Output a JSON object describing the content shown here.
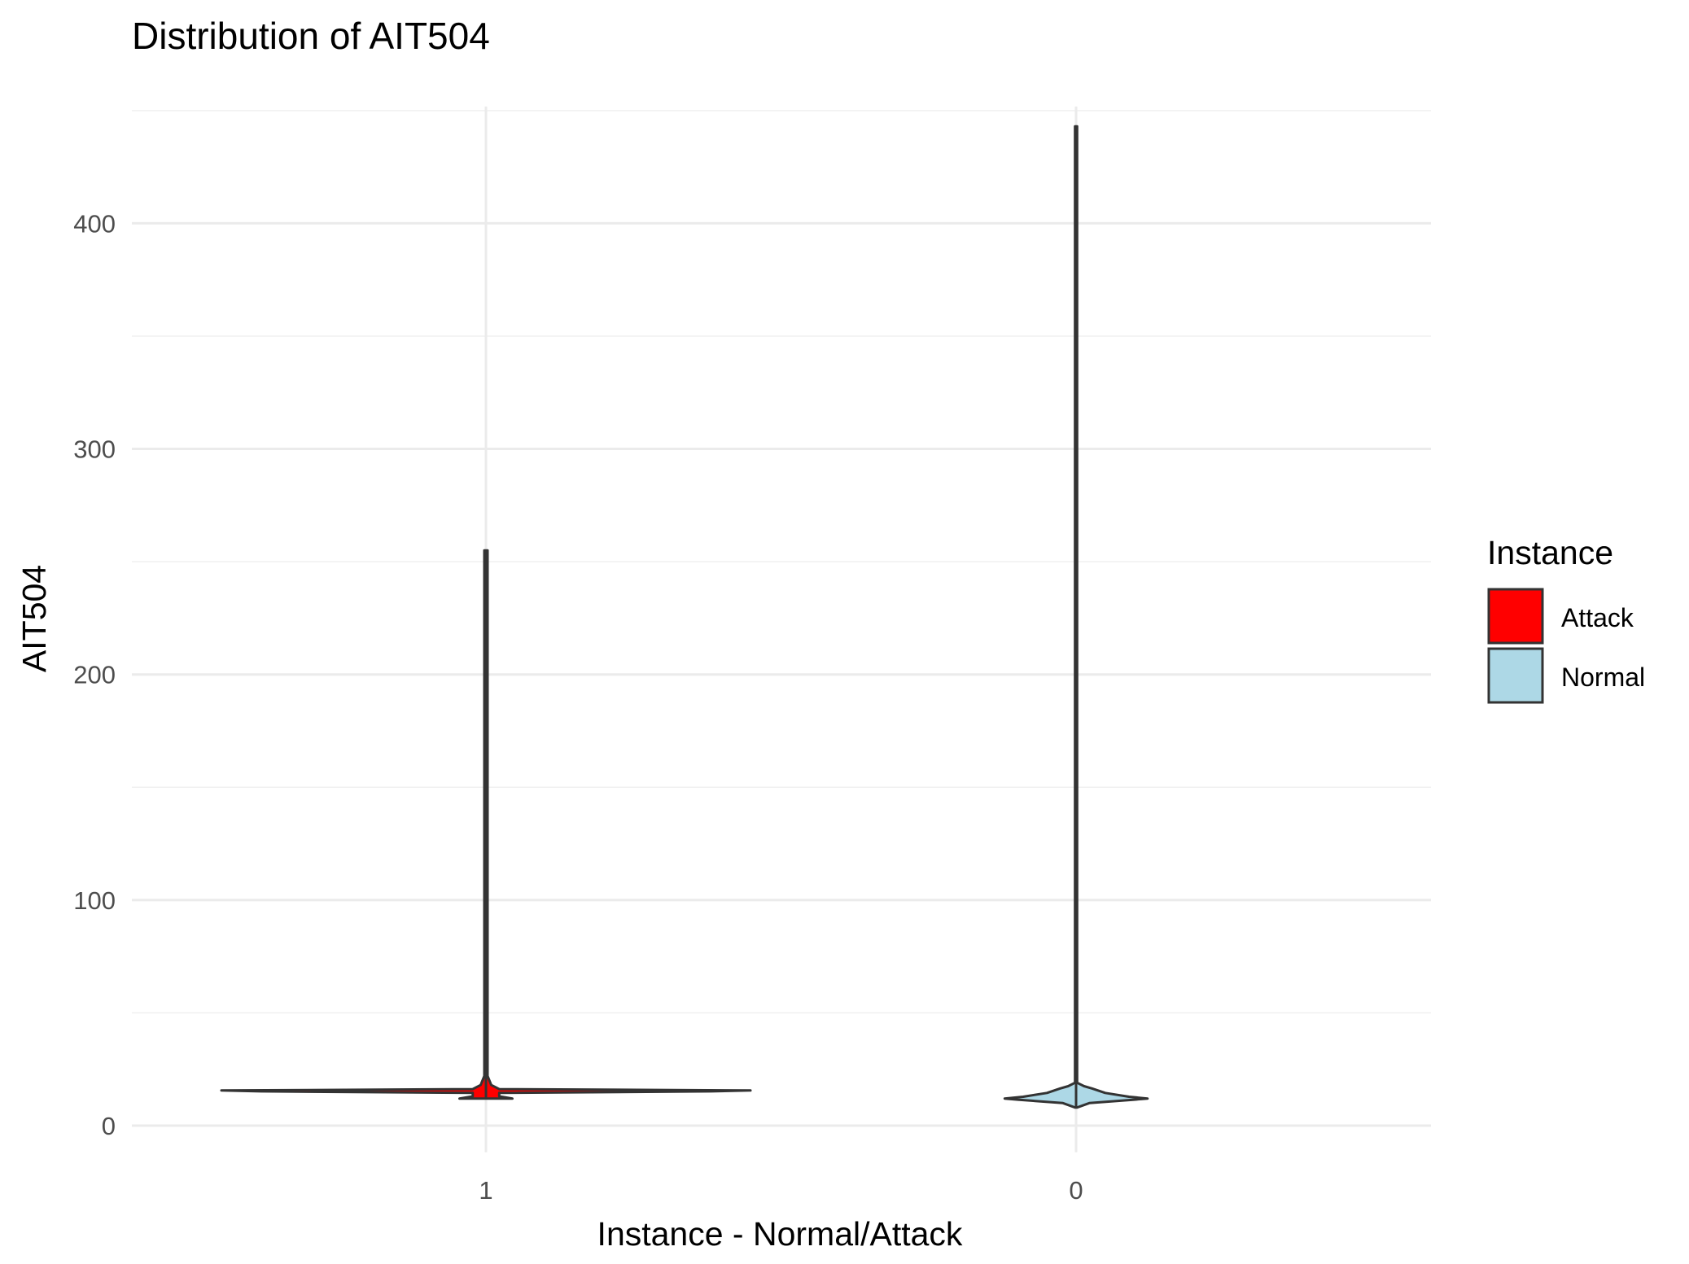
{
  "chart_data": {
    "type": "violin",
    "title": "Distribution of AIT504",
    "xlabel": "Instance - Normal/Attack",
    "ylabel": "AIT504",
    "categories": [
      "1",
      "0"
    ],
    "ylim": [
      -10,
      450
    ],
    "yticks": [
      0,
      100,
      200,
      300,
      400
    ],
    "grid": true,
    "legend": {
      "title": "Instance",
      "position": "right",
      "entries": [
        {
          "label": "Attack",
          "color": "#ff0000"
        },
        {
          "label": "Normal",
          "color": "#add8e6"
        }
      ]
    },
    "series": [
      {
        "name": "Attack",
        "category": "1",
        "color": "#ff0000",
        "min": 12,
        "max": 255,
        "density": [
          {
            "y": 12,
            "w": 0.1
          },
          {
            "y": 13,
            "w": 0.05
          },
          {
            "y": 14.5,
            "w": 0.05
          },
          {
            "y": 15.2,
            "w": 0.85
          },
          {
            "y": 15.6,
            "w": 1.0
          },
          {
            "y": 16.2,
            "w": 0.05
          },
          {
            "y": 18,
            "w": 0.02
          },
          {
            "y": 22,
            "w": 0.006
          },
          {
            "y": 255,
            "w": 0.006
          }
        ]
      },
      {
        "name": "Normal",
        "category": "0",
        "color": "#add8e6",
        "min": 8,
        "max": 443,
        "density": [
          {
            "y": 8,
            "w": 0.003
          },
          {
            "y": 10,
            "w": 0.05
          },
          {
            "y": 11.5,
            "w": 0.22
          },
          {
            "y": 12,
            "w": 0.27
          },
          {
            "y": 12.8,
            "w": 0.2
          },
          {
            "y": 14.5,
            "w": 0.11
          },
          {
            "y": 16.5,
            "w": 0.06
          },
          {
            "y": 17.5,
            "w": 0.03
          },
          {
            "y": 19,
            "w": 0.004
          },
          {
            "y": 443,
            "w": 0.004
          }
        ]
      }
    ]
  }
}
